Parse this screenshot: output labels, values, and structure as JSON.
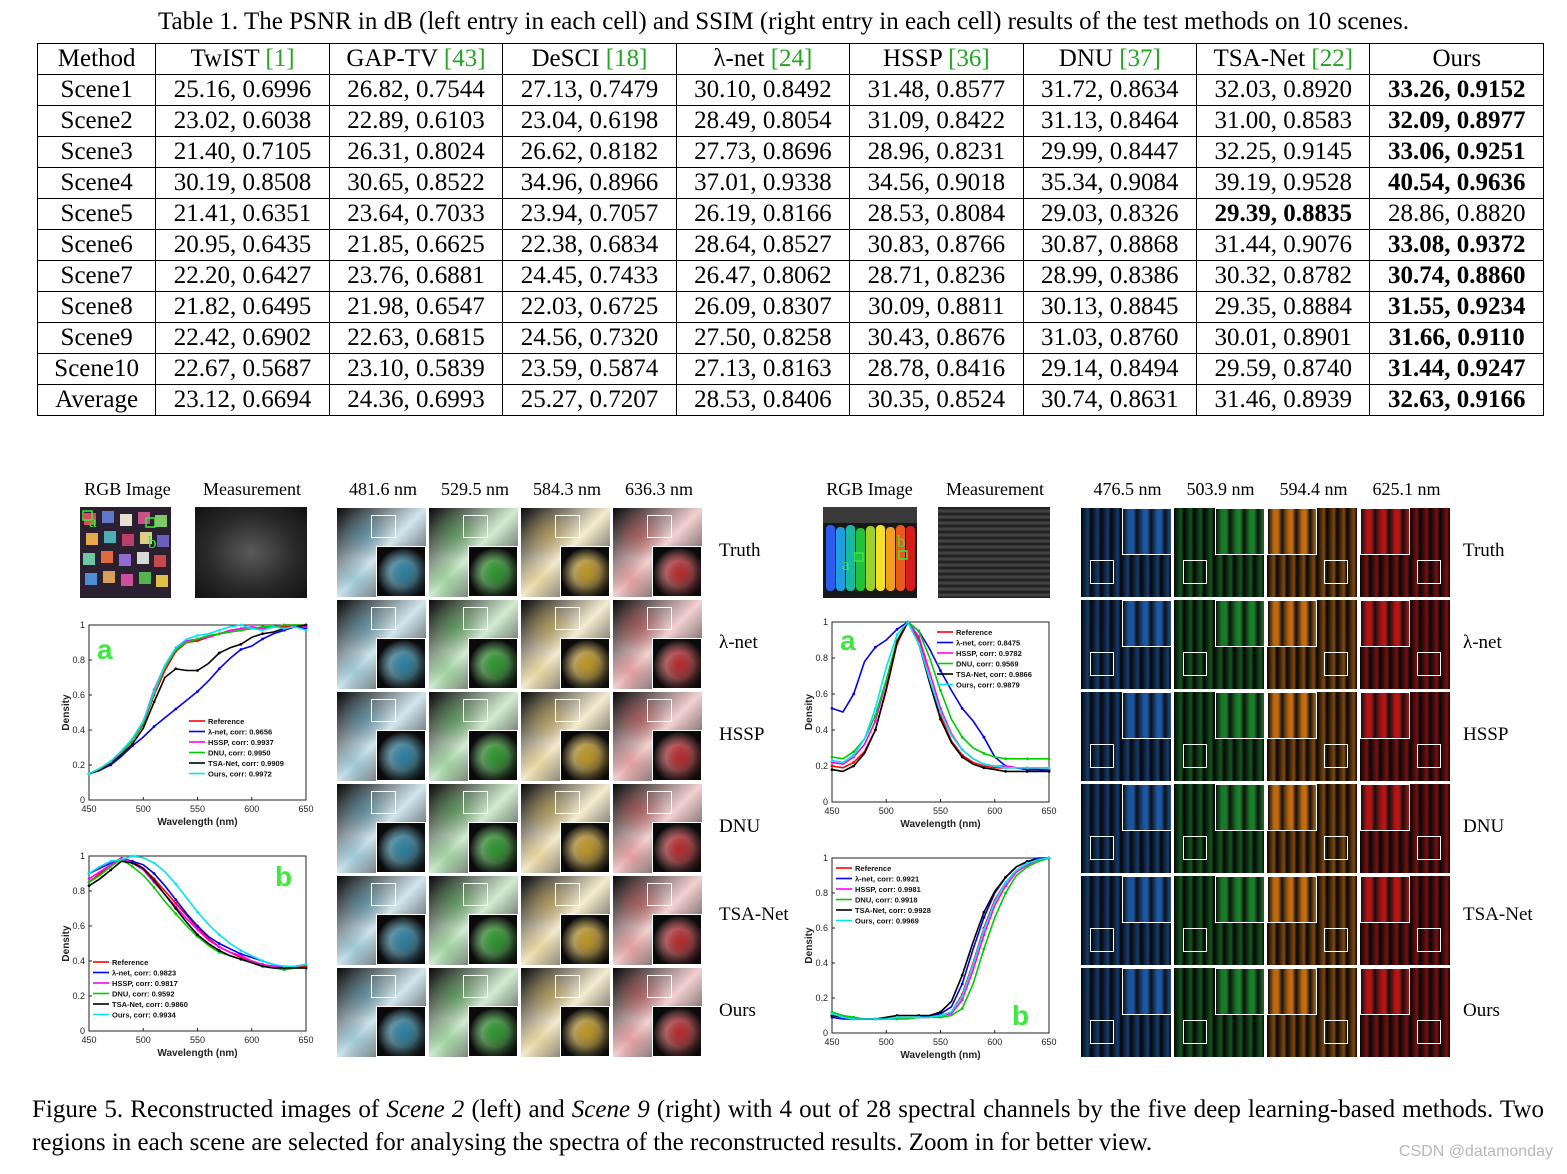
{
  "table": {
    "caption": "Table 1. The PSNR in dB (left entry in each cell) and SSIM (right entry in each cell) results of the test methods on 10 scenes.",
    "header": [
      {
        "name": "Method",
        "ref": ""
      },
      {
        "name": "TwIST ",
        "ref": "[1]"
      },
      {
        "name": "GAP-TV ",
        "ref": "[43]"
      },
      {
        "name": "DeSCI ",
        "ref": "[18]"
      },
      {
        "name": "λ-net ",
        "ref": "[24]"
      },
      {
        "name": "HSSP ",
        "ref": "[36]"
      },
      {
        "name": "DNU ",
        "ref": "[37]"
      },
      {
        "name": "TSA-Net ",
        "ref": "[22]"
      },
      {
        "name": "Ours",
        "ref": ""
      }
    ],
    "rows": [
      {
        "label": "Scene1",
        "cells": [
          "25.16, 0.6996",
          "26.82, 0.7544",
          "27.13, 0.7479",
          "30.10, 0.8492",
          "31.48, 0.8577",
          "31.72, 0.8634",
          "32.03, 0.8920",
          "33.26, 0.9152"
        ],
        "bold": 7
      },
      {
        "label": "Scene2",
        "cells": [
          "23.02, 0.6038",
          "22.89, 0.6103",
          "23.04, 0.6198",
          "28.49, 0.8054",
          "31.09, 0.8422",
          "31.13, 0.8464",
          "31.00, 0.8583",
          "32.09, 0.8977"
        ],
        "bold": 7
      },
      {
        "label": "Scene3",
        "cells": [
          "21.40, 0.7105",
          "26.31, 0.8024",
          "26.62, 0.8182",
          "27.73, 0.8696",
          "28.96, 0.8231",
          "29.99, 0.8447",
          "32.25, 0.9145",
          "33.06, 0.9251"
        ],
        "bold": 7
      },
      {
        "label": "Scene4",
        "cells": [
          "30.19, 0.8508",
          "30.65, 0.8522",
          "34.96, 0.8966",
          "37.01, 0.9338",
          "34.56, 0.9018",
          "35.34, 0.9084",
          "39.19, 0.9528",
          "40.54, 0.9636"
        ],
        "bold": 7
      },
      {
        "label": "Scene5",
        "cells": [
          "21.41, 0.6351",
          "23.64, 0.7033",
          "23.94, 0.7057",
          "26.19, 0.8166",
          "28.53, 0.8084",
          "29.03, 0.8326",
          "29.39, 0.8835",
          "28.86, 0.8820"
        ],
        "bold": 6
      },
      {
        "label": "Scene6",
        "cells": [
          "20.95, 0.6435",
          "21.85, 0.6625",
          "22.38, 0.6834",
          "28.64, 0.8527",
          "30.83, 0.8766",
          "30.87, 0.8868",
          "31.44, 0.9076",
          "33.08, 0.9372"
        ],
        "bold": 7
      },
      {
        "label": "Scene7",
        "cells": [
          "22.20, 0.6427",
          "23.76, 0.6881",
          "24.45, 0.7433",
          "26.47, 0.8062",
          "28.71, 0.8236",
          "28.99, 0.8386",
          "30.32, 0.8782",
          "30.74, 0.8860"
        ],
        "bold": 7
      },
      {
        "label": "Scene8",
        "cells": [
          "21.82, 0.6495",
          "21.98, 0.6547",
          "22.03, 0.6725",
          "26.09, 0.8307",
          "30.09, 0.8811",
          "30.13, 0.8845",
          "29.35, 0.8884",
          "31.55, 0.9234"
        ],
        "bold": 7
      },
      {
        "label": "Scene9",
        "cells": [
          "22.42, 0.6902",
          "22.63, 0.6815",
          "24.56, 0.7320",
          "27.50, 0.8258",
          "30.43, 0.8676",
          "31.03, 0.8760",
          "30.01, 0.8901",
          "31.66, 0.9110"
        ],
        "bold": 7
      },
      {
        "label": "Scene10",
        "cells": [
          "22.67, 0.5687",
          "23.10, 0.5839",
          "23.59, 0.5874",
          "27.13, 0.8163",
          "28.78, 0.8416",
          "29.14, 0.8494",
          "29.59, 0.8740",
          "31.44, 0.9247"
        ],
        "bold": 7
      },
      {
        "label": "Average",
        "cells": [
          "23.12, 0.6694",
          "24.36, 0.6993",
          "25.27, 0.7207",
          "28.53, 0.8406",
          "30.35, 0.8524",
          "30.74, 0.8631",
          "31.46, 0.8939",
          "32.63, 0.9166"
        ],
        "bold": 7
      }
    ]
  },
  "figure": {
    "left": {
      "rgb_label": "RGB Image",
      "meas_label": "Measurement",
      "wavelengths": [
        "481.6 nm",
        "529.5 nm",
        "584.3 nm",
        "636.3 nm"
      ],
      "region_a": "a",
      "region_b": "b"
    },
    "right": {
      "rgb_label": "RGB Image",
      "meas_label": "Measurement",
      "wavelengths": [
        "476.5 nm",
        "503.9 nm",
        "594.4 nm",
        "625.1 nm"
      ],
      "region_a": "a",
      "region_b": "b"
    },
    "methods": [
      "Truth",
      "λ-net",
      "HSSP",
      "DNU",
      "TSA-Net",
      "Ours"
    ],
    "colors": {
      "left_tiles": [
        "#1a7fa5",
        "#1b9a1b",
        "#c99a14",
        "#c0181c"
      ],
      "right_tiles": [
        "#1d5fb5",
        "#1a8a2c",
        "#d2730f",
        "#c41616"
      ],
      "series": [
        "#ff0000",
        "#0000ff",
        "#ff00ff",
        "#00cc00",
        "#000000",
        "#00e5ee"
      ],
      "panel_letter": "#3ee83e",
      "reference_link": "#22a722"
    }
  },
  "chart_data": [
    {
      "type": "line",
      "id": "scene2-a",
      "panel_letter": "a",
      "xlabel": "Wavelength (nm)",
      "ylabel": "Density",
      "xlim": [
        450,
        650
      ],
      "ylim": [
        0,
        1
      ],
      "xticks": [
        "450",
        "500",
        "550",
        "600",
        "650"
      ],
      "yticks": [
        "0",
        "0.2",
        "0.4",
        "0.6",
        "0.8",
        "1"
      ],
      "x": [
        450,
        460,
        470,
        480,
        490,
        500,
        510,
        520,
        530,
        540,
        550,
        560,
        570,
        580,
        590,
        600,
        610,
        620,
        630,
        640,
        650
      ],
      "series": [
        {
          "name": "Reference",
          "values": [
            0.15,
            0.17,
            0.21,
            0.27,
            0.34,
            0.43,
            0.6,
            0.74,
            0.85,
            0.9,
            0.91,
            0.93,
            0.95,
            0.96,
            0.97,
            0.98,
            0.98,
            0.99,
            0.99,
            1.0,
            1.0
          ]
        },
        {
          "name": "λ-net, corr: 0.9656",
          "values": [
            0.15,
            0.17,
            0.2,
            0.25,
            0.31,
            0.36,
            0.42,
            0.47,
            0.52,
            0.57,
            0.62,
            0.68,
            0.75,
            0.81,
            0.86,
            0.88,
            0.92,
            0.95,
            0.97,
            0.99,
            0.98
          ]
        },
        {
          "name": "HSSP, corr: 0.9937",
          "values": [
            0.15,
            0.18,
            0.22,
            0.28,
            0.35,
            0.45,
            0.63,
            0.77,
            0.87,
            0.91,
            0.92,
            0.93,
            0.95,
            0.97,
            0.98,
            0.99,
            0.98,
            0.99,
            1.0,
            1.0,
            0.99
          ]
        },
        {
          "name": "DNU, corr: 0.9950",
          "values": [
            0.15,
            0.18,
            0.22,
            0.27,
            0.34,
            0.44,
            0.61,
            0.76,
            0.86,
            0.9,
            0.92,
            0.94,
            0.95,
            0.96,
            0.97,
            0.98,
            0.99,
            0.99,
            1.0,
            1.0,
            1.0
          ]
        },
        {
          "name": "TSA-Net, corr: 0.9909",
          "values": [
            0.15,
            0.17,
            0.21,
            0.26,
            0.32,
            0.41,
            0.56,
            0.7,
            0.75,
            0.74,
            0.74,
            0.78,
            0.84,
            0.87,
            0.89,
            0.93,
            0.95,
            0.96,
            0.98,
            0.99,
            1.0
          ]
        },
        {
          "name": "Ours, corr: 0.9972",
          "values": [
            0.15,
            0.18,
            0.22,
            0.28,
            0.35,
            0.45,
            0.62,
            0.77,
            0.87,
            0.92,
            0.94,
            0.95,
            0.97,
            0.99,
            1.0,
            0.98,
            0.97,
            0.99,
            0.98,
            0.99,
            0.97
          ]
        }
      ]
    },
    {
      "type": "line",
      "id": "scene2-b",
      "panel_letter": "b",
      "xlabel": "Wavelength (nm)",
      "ylabel": "Density",
      "xlim": [
        450,
        650
      ],
      "ylim": [
        0,
        1
      ],
      "xticks": [
        "450",
        "500",
        "550",
        "600",
        "650"
      ],
      "yticks": [
        "0",
        "0.2",
        "0.4",
        "0.6",
        "0.8",
        "1"
      ],
      "x": [
        450,
        460,
        470,
        480,
        490,
        500,
        510,
        520,
        530,
        540,
        550,
        560,
        570,
        580,
        590,
        600,
        610,
        620,
        630,
        640,
        650
      ],
      "series": [
        {
          "name": "Reference",
          "values": [
            0.85,
            0.9,
            0.95,
            0.99,
            0.97,
            0.93,
            0.87,
            0.8,
            0.73,
            0.66,
            0.59,
            0.53,
            0.48,
            0.45,
            0.42,
            0.4,
            0.38,
            0.37,
            0.36,
            0.36,
            0.37
          ]
        },
        {
          "name": "λ-net, corr: 0.9823",
          "values": [
            0.9,
            0.93,
            0.96,
            0.98,
            0.97,
            0.95,
            0.9,
            0.83,
            0.75,
            0.67,
            0.6,
            0.54,
            0.5,
            0.47,
            0.44,
            0.42,
            0.4,
            0.38,
            0.36,
            0.37,
            0.38
          ]
        },
        {
          "name": "HSSP, corr: 0.9817",
          "values": [
            0.87,
            0.91,
            0.95,
            0.99,
            0.96,
            0.92,
            0.85,
            0.78,
            0.71,
            0.64,
            0.58,
            0.52,
            0.48,
            0.45,
            0.43,
            0.4,
            0.38,
            0.37,
            0.36,
            0.36,
            0.36
          ]
        },
        {
          "name": "DNU, corr: 0.9592",
          "values": [
            0.85,
            0.89,
            0.94,
            0.98,
            0.94,
            0.89,
            0.82,
            0.74,
            0.67,
            0.6,
            0.54,
            0.49,
            0.45,
            0.43,
            0.41,
            0.39,
            0.37,
            0.36,
            0.35,
            0.36,
            0.36
          ]
        },
        {
          "name": "TSA-Net, corr: 0.9860",
          "values": [
            0.83,
            0.87,
            0.92,
            0.97,
            0.96,
            0.93,
            0.86,
            0.78,
            0.7,
            0.62,
            0.55,
            0.5,
            0.46,
            0.43,
            0.41,
            0.39,
            0.37,
            0.36,
            0.36,
            0.36,
            0.36
          ]
        },
        {
          "name": "Ours, corr: 0.9934",
          "values": [
            0.9,
            0.94,
            0.97,
            0.98,
            1.0,
            0.99,
            0.96,
            0.91,
            0.84,
            0.76,
            0.68,
            0.61,
            0.55,
            0.5,
            0.46,
            0.43,
            0.4,
            0.38,
            0.37,
            0.37,
            0.38
          ]
        }
      ]
    },
    {
      "type": "line",
      "id": "scene9-a",
      "panel_letter": "a",
      "xlabel": "Wavelength (nm)",
      "ylabel": "Density",
      "xlim": [
        450,
        650
      ],
      "ylim": [
        0,
        1
      ],
      "xticks": [
        "450",
        "500",
        "550",
        "600",
        "650"
      ],
      "yticks": [
        "0",
        "0.2",
        "0.4",
        "0.6",
        "0.8",
        "1"
      ],
      "x": [
        450,
        460,
        470,
        480,
        490,
        500,
        510,
        520,
        530,
        540,
        550,
        560,
        570,
        580,
        590,
        600,
        610,
        620,
        630,
        640,
        650
      ],
      "series": [
        {
          "name": "Reference",
          "values": [
            0.2,
            0.19,
            0.22,
            0.28,
            0.4,
            0.62,
            0.88,
            1.0,
            0.9,
            0.68,
            0.48,
            0.34,
            0.26,
            0.22,
            0.2,
            0.19,
            0.19,
            0.19,
            0.18,
            0.18,
            0.18
          ]
        },
        {
          "name": "λ-net, corr: 0.8475",
          "values": [
            0.52,
            0.5,
            0.6,
            0.78,
            0.86,
            0.9,
            0.96,
            1.0,
            0.95,
            0.85,
            0.73,
            0.62,
            0.52,
            0.45,
            0.36,
            0.25,
            0.2,
            0.19,
            0.18,
            0.18,
            0.17
          ]
        },
        {
          "name": "HSSP, corr: 0.9782",
          "values": [
            0.22,
            0.21,
            0.25,
            0.32,
            0.45,
            0.67,
            0.9,
            1.0,
            0.92,
            0.72,
            0.52,
            0.38,
            0.29,
            0.24,
            0.21,
            0.2,
            0.2,
            0.19,
            0.19,
            0.19,
            0.19
          ]
        },
        {
          "name": "DNU, corr: 0.9569",
          "values": [
            0.25,
            0.24,
            0.28,
            0.35,
            0.48,
            0.68,
            0.9,
            1.0,
            0.95,
            0.8,
            0.62,
            0.46,
            0.36,
            0.3,
            0.27,
            0.25,
            0.24,
            0.24,
            0.24,
            0.24,
            0.24
          ]
        },
        {
          "name": "TSA-Net, corr: 0.9866",
          "values": [
            0.18,
            0.17,
            0.2,
            0.27,
            0.4,
            0.63,
            0.89,
            1.0,
            0.88,
            0.66,
            0.46,
            0.33,
            0.25,
            0.21,
            0.19,
            0.18,
            0.17,
            0.17,
            0.17,
            0.17,
            0.17
          ]
        },
        {
          "name": "Ours, corr: 0.9879",
          "values": [
            0.23,
            0.22,
            0.26,
            0.35,
            0.52,
            0.75,
            0.93,
            1.0,
            0.88,
            0.68,
            0.5,
            0.37,
            0.29,
            0.24,
            0.21,
            0.2,
            0.19,
            0.19,
            0.19,
            0.19,
            0.19
          ]
        }
      ]
    },
    {
      "type": "line",
      "id": "scene9-b",
      "panel_letter": "b",
      "xlabel": "Wavelength (nm)",
      "ylabel": "Density",
      "xlim": [
        450,
        650
      ],
      "ylim": [
        0,
        1
      ],
      "xticks": [
        "450",
        "500",
        "550",
        "600",
        "650"
      ],
      "yticks": [
        "0",
        "0.2",
        "0.4",
        "0.6",
        "0.8",
        "1"
      ],
      "x": [
        450,
        460,
        470,
        480,
        490,
        500,
        510,
        520,
        530,
        540,
        550,
        560,
        570,
        580,
        590,
        600,
        610,
        620,
        630,
        640,
        650
      ],
      "series": [
        {
          "name": "Reference",
          "values": [
            0.1,
            0.09,
            0.08,
            0.08,
            0.08,
            0.08,
            0.09,
            0.09,
            0.09,
            0.09,
            0.1,
            0.12,
            0.22,
            0.4,
            0.6,
            0.76,
            0.86,
            0.93,
            0.97,
            0.99,
            1.0
          ]
        },
        {
          "name": "λ-net, corr: 0.9921",
          "values": [
            0.09,
            0.08,
            0.08,
            0.08,
            0.08,
            0.08,
            0.09,
            0.09,
            0.09,
            0.1,
            0.11,
            0.15,
            0.28,
            0.48,
            0.66,
            0.8,
            0.89,
            0.95,
            0.98,
            1.0,
            1.0
          ]
        },
        {
          "name": "HSSP, corr: 0.9981",
          "values": [
            0.11,
            0.09,
            0.08,
            0.08,
            0.08,
            0.08,
            0.09,
            0.09,
            0.09,
            0.09,
            0.1,
            0.11,
            0.19,
            0.36,
            0.56,
            0.73,
            0.84,
            0.92,
            0.96,
            0.99,
            1.0
          ]
        },
        {
          "name": "DNU, corr: 0.9918",
          "values": [
            0.12,
            0.1,
            0.09,
            0.08,
            0.08,
            0.08,
            0.08,
            0.08,
            0.09,
            0.09,
            0.09,
            0.1,
            0.14,
            0.28,
            0.48,
            0.66,
            0.8,
            0.9,
            0.95,
            0.98,
            1.0
          ]
        },
        {
          "name": "TSA-Net, corr: 0.9928",
          "values": [
            0.1,
            0.09,
            0.08,
            0.08,
            0.08,
            0.09,
            0.1,
            0.1,
            0.1,
            0.1,
            0.12,
            0.18,
            0.33,
            0.52,
            0.69,
            0.81,
            0.89,
            0.95,
            0.98,
            0.99,
            1.0
          ]
        },
        {
          "name": "Ours, corr: 0.9969",
          "values": [
            0.11,
            0.09,
            0.08,
            0.08,
            0.08,
            0.08,
            0.09,
            0.09,
            0.09,
            0.09,
            0.1,
            0.12,
            0.21,
            0.39,
            0.59,
            0.75,
            0.86,
            0.93,
            0.97,
            0.99,
            1.0
          ]
        }
      ]
    }
  ],
  "caption": {
    "prefix": "Figure 5. Reconstructed images of ",
    "scene_left": "Scene 2",
    "mid1": " (left) and ",
    "scene_right": "Scene 9",
    "rest": " (right) with 4 out of 28 spectral channels by the five deep learning-based methods. Two regions in each scene are selected for analysing the spectra of the reconstructed results. Zoom in for better view."
  },
  "watermark": "CSDN @datamonday"
}
